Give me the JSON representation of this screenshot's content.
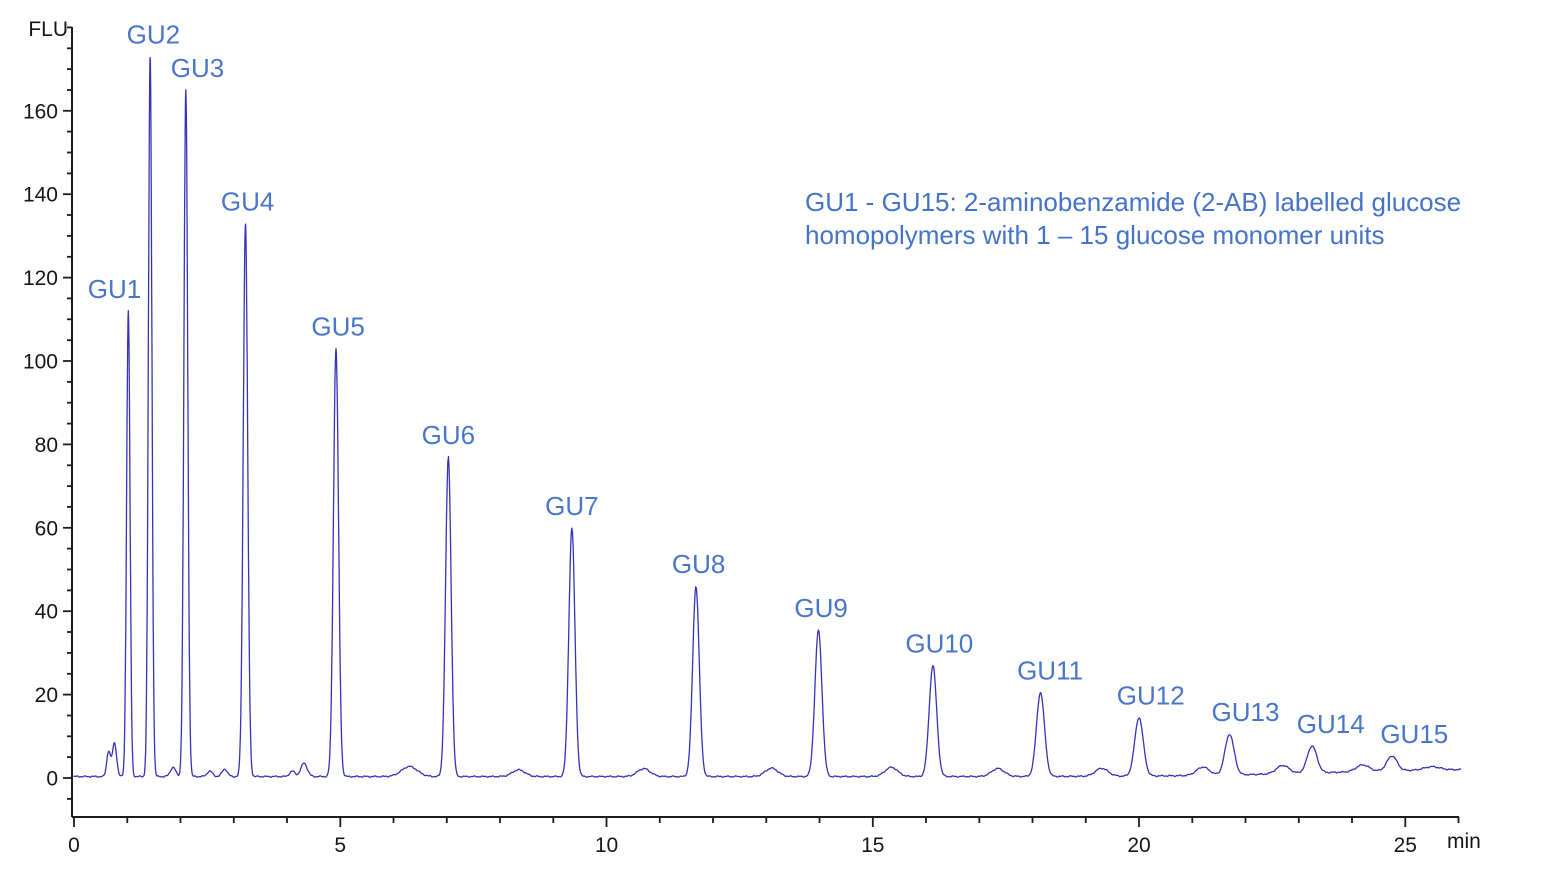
{
  "chart_data": {
    "type": "line",
    "title": "",
    "xlabel": "min",
    "ylabel": "FLU",
    "x_range": [
      0,
      26.05
    ],
    "y_axis": {
      "major_tick_values": [
        0,
        20,
        40,
        60,
        80,
        100,
        120,
        140,
        160
      ],
      "minor_tick_step": 5,
      "minor_tick_min": -5,
      "minor_tick_max": 180
    },
    "x_axis": {
      "major_tick_values": [
        0,
        5,
        10,
        15,
        20,
        25
      ],
      "minor_tick_step": 1,
      "minor_tick_max": 26
    },
    "grid": "off",
    "legend": "none",
    "colors": {
      "trace": "#3434b8",
      "peak_label": "#4a76ca",
      "annotation": "#4573c9",
      "axis": "#1c1c1c",
      "background": "#ffffff"
    },
    "annotation": {
      "line1": "GU1 - GU15: 2-aminobenzamide (2-AB) labelled glucose",
      "line2": "homopolymers with 1 – 15 glucose monomer units"
    },
    "peaks": [
      {
        "label": "GU1",
        "retention_time_min": 1.02,
        "height_flu": 112,
        "sigma_min": 0.032,
        "label_dx_min": -0.26
      },
      {
        "label": "GU2",
        "retention_time_min": 1.43,
        "height_flu": 173,
        "sigma_min": 0.033,
        "label_dx_min": 0.06
      },
      {
        "label": "GU3",
        "retention_time_min": 2.1,
        "height_flu": 165,
        "sigma_min": 0.036,
        "label_dx_min": 0.22
      },
      {
        "label": "GU4",
        "retention_time_min": 3.22,
        "height_flu": 133,
        "sigma_min": 0.042,
        "label_dx_min": 0.04
      },
      {
        "label": "GU5",
        "retention_time_min": 4.92,
        "height_flu": 103,
        "sigma_min": 0.048,
        "label_dx_min": 0.04
      },
      {
        "label": "GU6",
        "retention_time_min": 7.03,
        "height_flu": 77,
        "sigma_min": 0.052,
        "label_dx_min": 0.0
      },
      {
        "label": "GU7",
        "retention_time_min": 9.35,
        "height_flu": 60,
        "sigma_min": 0.057,
        "label_dx_min": 0.0
      },
      {
        "label": "GU8",
        "retention_time_min": 11.68,
        "height_flu": 46,
        "sigma_min": 0.062,
        "label_dx_min": 0.05
      },
      {
        "label": "GU9",
        "retention_time_min": 13.98,
        "height_flu": 35.5,
        "sigma_min": 0.066,
        "label_dx_min": 0.05
      },
      {
        "label": "GU10",
        "retention_time_min": 16.13,
        "height_flu": 27,
        "sigma_min": 0.07,
        "label_dx_min": 0.12
      },
      {
        "label": "GU11",
        "retention_time_min": 18.15,
        "height_flu": 20.5,
        "sigma_min": 0.075,
        "label_dx_min": 0.18
      },
      {
        "label": "GU12",
        "retention_time_min": 20.0,
        "height_flu": 14.5,
        "sigma_min": 0.08,
        "label_dx_min": 0.22
      },
      {
        "label": "GU13",
        "retention_time_min": 21.7,
        "height_flu": 10.5,
        "sigma_min": 0.085,
        "label_dx_min": 0.3
      },
      {
        "label": "GU14",
        "retention_time_min": 23.25,
        "height_flu": 7.7,
        "sigma_min": 0.09,
        "label_dx_min": 0.35
      },
      {
        "label": "GU15",
        "retention_time_min": 24.75,
        "height_flu": 5.3,
        "sigma_min": 0.095,
        "label_dx_min": 0.42
      }
    ],
    "minor_bumps": [
      {
        "t": 0.65,
        "h": 6.0,
        "sigma": 0.035
      },
      {
        "t": 0.76,
        "h": 8.0,
        "sigma": 0.04
      },
      {
        "t": 1.86,
        "h": 2.2,
        "sigma": 0.05
      },
      {
        "t": 2.55,
        "h": 1.3,
        "sigma": 0.05
      },
      {
        "t": 2.83,
        "h": 1.8,
        "sigma": 0.05
      },
      {
        "t": 4.1,
        "h": 1.3,
        "sigma": 0.05
      },
      {
        "t": 4.32,
        "h": 3.2,
        "sigma": 0.06
      },
      {
        "t": 6.3,
        "h": 2.4,
        "sigma": 0.15
      },
      {
        "t": 8.35,
        "h": 1.6,
        "sigma": 0.12
      },
      {
        "t": 10.7,
        "h": 1.9,
        "sigma": 0.12
      },
      {
        "t": 13.1,
        "h": 2.0,
        "sigma": 0.12
      },
      {
        "t": 15.35,
        "h": 2.2,
        "sigma": 0.12
      },
      {
        "t": 17.35,
        "h": 1.9,
        "sigma": 0.12
      },
      {
        "t": 19.3,
        "h": 1.9,
        "sigma": 0.12
      },
      {
        "t": 21.2,
        "h": 2.0,
        "sigma": 0.12
      },
      {
        "t": 22.7,
        "h": 2.0,
        "sigma": 0.12
      },
      {
        "t": 24.2,
        "h": 1.6,
        "sigma": 0.12
      },
      {
        "t": 25.5,
        "h": 0.8,
        "sigma": 0.15
      }
    ],
    "baseline": {
      "start_flu": 0.35,
      "end_rise_flu": 1.9,
      "rise_center_min": 23.5,
      "rise_width_min": 1.3
    }
  }
}
